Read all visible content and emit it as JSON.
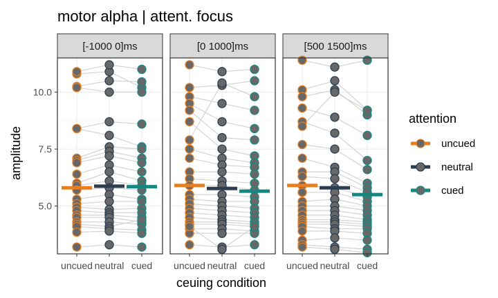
{
  "chart_data": {
    "type": "scatter",
    "title": "motor alpha | attent. focus",
    "xlabel": "ceuing condition",
    "ylabel": "amplitude",
    "ylim": [
      2.9,
      11.5
    ],
    "yticks": [
      5.0,
      7.5,
      10.0
    ],
    "ytick_labels": [
      "5.0",
      "7.5",
      "10.0"
    ],
    "categories": [
      "uncued",
      "neutral",
      "cued"
    ],
    "grid": true,
    "legend": {
      "title": "attention",
      "position": "right",
      "items": [
        {
          "label": "uncued",
          "color": "#E67E22"
        },
        {
          "label": "neutral",
          "color": "#2C3E50"
        },
        {
          "label": "cued",
          "color": "#16877F"
        }
      ]
    },
    "panels": [
      {
        "label": "[-1000 0]ms",
        "means": [
          5.8,
          5.87,
          5.85
        ],
        "subjects": [
          [
            10.8,
            10.9,
            10.2
          ],
          [
            10.25,
            10.5,
            10.45
          ],
          [
            10.2,
            10.0,
            10.0
          ],
          [
            8.4,
            8.7,
            8.6
          ],
          [
            8.4,
            8.1,
            7.6
          ],
          [
            7.1,
            7.6,
            7.5
          ],
          [
            7.0,
            7.4,
            7.1
          ],
          [
            6.9,
            7.2,
            6.9
          ],
          [
            6.4,
            6.8,
            6.5
          ],
          [
            6.0,
            6.5,
            6.1
          ],
          [
            5.9,
            6.1,
            5.9
          ],
          [
            5.7,
            5.8,
            5.7
          ],
          [
            5.3,
            5.5,
            5.3
          ],
          [
            5.1,
            5.2,
            5.2
          ],
          [
            4.95,
            4.85,
            4.9
          ],
          [
            4.8,
            4.7,
            4.7
          ],
          [
            4.6,
            4.6,
            4.5
          ],
          [
            4.5,
            4.5,
            4.3
          ],
          [
            4.3,
            4.3,
            4.2
          ],
          [
            4.2,
            4.1,
            4.4
          ],
          [
            4.1,
            4.0,
            3.95
          ],
          [
            3.85,
            3.9,
            3.8
          ],
          [
            3.2,
            3.3,
            3.2
          ],
          [
            10.9,
            11.2,
            11.0
          ]
        ]
      },
      {
        "label": "[0 1000]ms",
        "means": [
          5.9,
          5.77,
          5.65
        ],
        "subjects": [
          [
            11.2,
            10.9,
            11.0
          ],
          [
            10.2,
            10.3,
            10.5
          ],
          [
            9.8,
            9.5,
            9.2
          ],
          [
            9.5,
            8.7,
            8.4
          ],
          [
            9.2,
            8.0,
            7.9
          ],
          [
            8.7,
            7.5,
            7.2
          ],
          [
            7.5,
            7.1,
            6.9
          ],
          [
            7.1,
            6.8,
            6.7
          ],
          [
            6.5,
            6.5,
            6.4
          ],
          [
            6.2,
            6.1,
            6.0
          ],
          [
            5.9,
            5.9,
            5.7
          ],
          [
            5.5,
            5.5,
            5.4
          ],
          [
            5.3,
            5.2,
            5.2
          ],
          [
            5.1,
            5.0,
            4.9
          ],
          [
            4.9,
            4.8,
            4.7
          ],
          [
            4.7,
            4.6,
            4.5
          ],
          [
            4.5,
            4.4,
            4.3
          ],
          [
            4.3,
            4.3,
            4.2
          ],
          [
            4.2,
            4.2,
            4.1
          ],
          [
            4.0,
            4.0,
            3.9
          ],
          [
            3.8,
            3.8,
            3.8
          ],
          [
            3.3,
            3.2,
            3.3
          ],
          [
            4.1,
            3.1,
            4.1
          ],
          [
            7.9,
            10.4,
            9.8
          ]
        ]
      },
      {
        "label": "[500 1500]ms",
        "means": [
          5.9,
          5.8,
          5.5
        ],
        "subjects": [
          [
            11.4,
            11.1,
            11.4
          ],
          [
            10.1,
            10.5,
            9.2
          ],
          [
            9.8,
            10.1,
            9.0
          ],
          [
            9.3,
            8.9,
            8.1
          ],
          [
            8.7,
            8.2,
            7.0
          ],
          [
            7.7,
            7.5,
            6.6
          ],
          [
            7.1,
            6.7,
            6.0
          ],
          [
            6.5,
            6.5,
            5.8
          ],
          [
            6.3,
            6.2,
            5.6
          ],
          [
            5.9,
            5.8,
            5.4
          ],
          [
            5.6,
            5.6,
            5.2
          ],
          [
            5.2,
            5.3,
            5.0
          ],
          [
            5.0,
            5.0,
            4.8
          ],
          [
            4.8,
            4.8,
            4.6
          ],
          [
            4.6,
            4.6,
            4.4
          ],
          [
            4.4,
            4.4,
            4.3
          ],
          [
            4.3,
            4.3,
            4.2
          ],
          [
            4.2,
            4.2,
            4.1
          ],
          [
            4.1,
            4.0,
            4.0
          ],
          [
            3.9,
            3.9,
            3.8
          ],
          [
            3.5,
            3.6,
            3.5
          ],
          [
            3.3,
            3.2,
            3.1
          ],
          [
            3.2,
            3.1,
            2.95
          ],
          [
            8.5,
            10.0,
            9.2
          ]
        ]
      }
    ]
  }
}
